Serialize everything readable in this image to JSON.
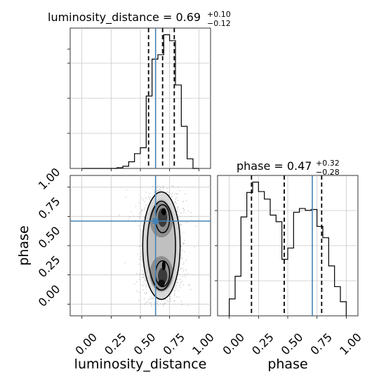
{
  "chart_data": {
    "type": "corner",
    "parameters": [
      "luminosity_distance",
      "phase"
    ],
    "xlabel_luminosity_distance": "luminosity_distance",
    "ylabel_phase": "phase",
    "xlabel_phase": "phase",
    "truth_color": "#4682b4",
    "grid": true,
    "titles": [
      {
        "param": "luminosity_distance",
        "main": "luminosity_distance = 0.69",
        "sup": "+0.10",
        "sub": "−0.12"
      },
      {
        "param": "phase",
        "main": "phase = 0.47",
        "sup": "+0.32",
        "sub": "−0.28"
      }
    ],
    "ticks": {
      "luminosity_distance": [
        0.0,
        0.25,
        0.5,
        0.75,
        1.0
      ],
      "phase": [
        0.0,
        0.25,
        0.5,
        0.75,
        1.0
      ],
      "tick_labels": [
        "0.00",
        "0.25",
        "0.50",
        "0.75",
        "1.00"
      ]
    },
    "hist_luminosity_distance": {
      "xlim": [
        -0.1,
        1.1
      ],
      "bin_edges": [
        0.0,
        0.05,
        0.1,
        0.15,
        0.2,
        0.25,
        0.3,
        0.35,
        0.4,
        0.45,
        0.5,
        0.55,
        0.6,
        0.65,
        0.7,
        0.75,
        0.8,
        0.85,
        0.9,
        0.95,
        1.0
      ],
      "counts": [
        0,
        0,
        0,
        0,
        0,
        0,
        1,
        3,
        9,
        20,
        28,
        98,
        148,
        154,
        181,
        173,
        113,
        57,
        13,
        0
      ],
      "quantiles": [
        0.57,
        0.69,
        0.79
      ],
      "truth": 0.63
    },
    "hist_phase": {
      "xlim": [
        -0.1,
        1.1
      ],
      "bin_edges": [
        0.0,
        0.05,
        0.1,
        0.15,
        0.2,
        0.25,
        0.3,
        0.35,
        0.4,
        0.45,
        0.5,
        0.55,
        0.6,
        0.65,
        0.7,
        0.75,
        0.8,
        0.85,
        0.9,
        0.95,
        1.0
      ],
      "counts": [
        18,
        42,
        105,
        131,
        142,
        132,
        124,
        107,
        100,
        60,
        72,
        110,
        114,
        112,
        113,
        95,
        83,
        53,
        31,
        15
      ],
      "quantiles": [
        0.19,
        0.47,
        0.79
      ],
      "truth": 0.71
    },
    "scatter_2d": {
      "xlim": [
        -0.1,
        1.1
      ],
      "ylim": [
        -0.1,
        1.1
      ],
      "truth": [
        0.63,
        0.71
      ],
      "modes": [
        {
          "x": 0.68,
          "y": 0.72
        },
        {
          "x": 0.68,
          "y": 0.25
        }
      ]
    }
  }
}
